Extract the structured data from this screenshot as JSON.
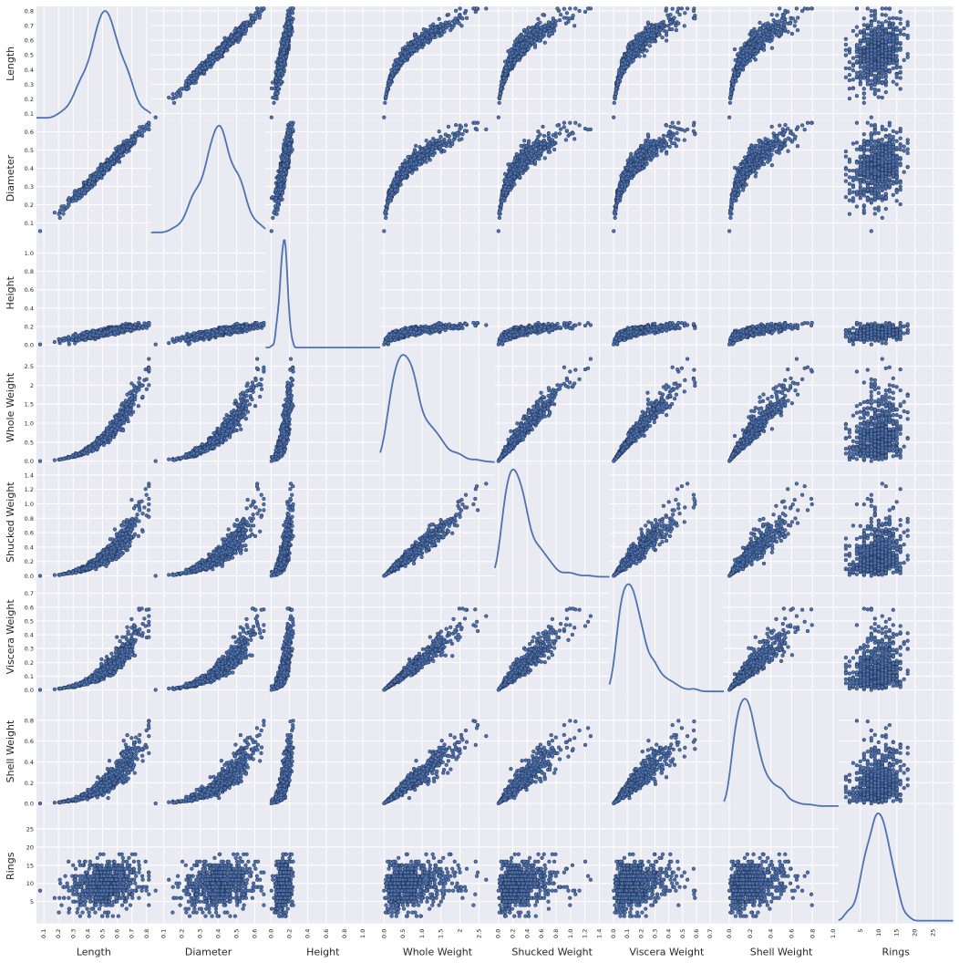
{
  "chart_data": {
    "type": "scatter",
    "variables": [
      "Length",
      "Diameter",
      "Height",
      "Whole Weight",
      "Shucked Weight",
      "Viscera Weight",
      "Shell Weight",
      "Rings"
    ],
    "ranges": {
      "Length": [
        0.05,
        0.83
      ],
      "Diameter": [
        0.03,
        0.66
      ],
      "Height": [
        -0.06,
        1.19
      ],
      "Whole Weight": [
        -0.1,
        2.92
      ],
      "Shucked Weight": [
        -0.05,
        1.54
      ],
      "Viscera Weight": [
        -0.03,
        0.8
      ],
      "Shell Weight": [
        -0.05,
        1.05
      ],
      "Rings": [
        -1.0,
        30.5
      ]
    },
    "y_ticks": {
      "Length": [
        0.1,
        0.2,
        0.3,
        0.4,
        0.5,
        0.6,
        0.7,
        0.8
      ],
      "Diameter": [
        0.1,
        0.2,
        0.3,
        0.4,
        0.5,
        0.6
      ],
      "Height": [
        0.0,
        0.2,
        0.4,
        0.6,
        0.8,
        1.0
      ],
      "Whole Weight": [
        0.0,
        0.5,
        1.0,
        1.5,
        2.0,
        2.5
      ],
      "Shucked Weight": [
        0.0,
        0.2,
        0.4,
        0.6,
        0.8,
        1.0,
        1.2,
        1.4
      ],
      "Viscera Weight": [
        0.0,
        0.1,
        0.2,
        0.3,
        0.4,
        0.5,
        0.6,
        0.7
      ],
      "Shell Weight": [
        0.0,
        0.2,
        0.4,
        0.6,
        0.8
      ],
      "Rings": [
        5,
        10,
        15,
        20,
        25
      ]
    },
    "x_ticks": {
      "Length": [
        0.1,
        0.2,
        0.3,
        0.4,
        0.5,
        0.6,
        0.7,
        0.8
      ],
      "Diameter": [
        0.1,
        0.2,
        0.3,
        0.4,
        0.5,
        0.6
      ],
      "Height": [
        0.0,
        0.2,
        0.4,
        0.6,
        0.8,
        1.0
      ],
      "Whole Weight": [
        0.0,
        0.5,
        1.0,
        1.5,
        2.0,
        2.5
      ],
      "Shucked Weight": [
        0.0,
        0.2,
        0.4,
        0.6,
        0.8,
        1.0,
        1.2,
        1.4
      ],
      "Viscera Weight": [
        0.0,
        0.1,
        0.2,
        0.3,
        0.4,
        0.5,
        0.6,
        0.7
      ],
      "Shell Weight": [
        0.0,
        0.2,
        0.4,
        0.6,
        0.8,
        1.0
      ],
      "Rings": [
        5,
        10,
        15,
        20,
        25
      ]
    },
    "diagonal": "kde",
    "grid": true,
    "colors": {
      "background": "#eaeaf2",
      "grid": "#ffffff",
      "point_fill": "#4c72b0",
      "point_edge": "#1f2a44",
      "kde_line": "#4c72b0",
      "label_text": "#262626"
    }
  }
}
